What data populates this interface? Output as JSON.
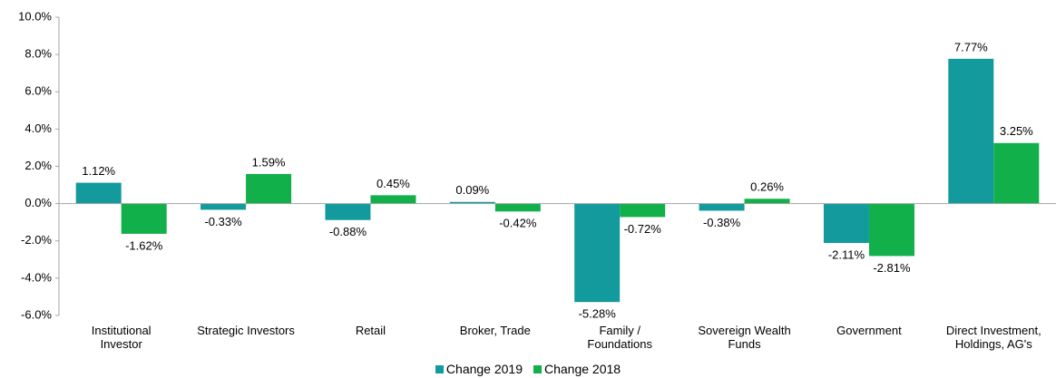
{
  "chart_data": {
    "type": "bar",
    "categories": [
      "Institutional\nInvestor",
      "Strategic Investors",
      "Retail",
      "Broker, Trade",
      "Family /\nFoundations",
      "Sovereign Wealth\nFunds",
      "Government",
      "Direct Investment,\nHoldings, AG's"
    ],
    "series": [
      {
        "name": "Change 2019",
        "color": "#139a9c",
        "values": [
          1.12,
          -0.33,
          -0.88,
          0.09,
          -5.28,
          -0.38,
          -2.11,
          7.77
        ],
        "value_labels": [
          "1.12%",
          "-0.33%",
          "-0.88%",
          "0.09%",
          "-5.28%",
          "-0.38%",
          "-2.11%",
          "7.77%"
        ]
      },
      {
        "name": "Change 2018",
        "color": "#11b04b",
        "values": [
          -1.62,
          1.59,
          0.45,
          -0.42,
          -0.72,
          0.26,
          -2.81,
          3.25
        ],
        "value_labels": [
          "-1.62%",
          "1.59%",
          "0.45%",
          "-0.42%",
          "-0.72%",
          "0.26%",
          "-2.81%",
          "3.25%"
        ]
      }
    ],
    "ylim": [
      -6,
      10
    ],
    "yticks": [
      {
        "value": -6,
        "label": "-6.0%"
      },
      {
        "value": -4,
        "label": "-4.0%"
      },
      {
        "value": -2,
        "label": "-2.0%"
      },
      {
        "value": 0,
        "label": "0.0%"
      },
      {
        "value": 2,
        "label": "2.0%"
      },
      {
        "value": 4,
        "label": "4.0%"
      },
      {
        "value": 6,
        "label": "6.0%"
      },
      {
        "value": 8,
        "label": "8.0%"
      },
      {
        "value": 10,
        "label": "10.0%"
      }
    ],
    "grid": false,
    "legend": "bottom"
  }
}
